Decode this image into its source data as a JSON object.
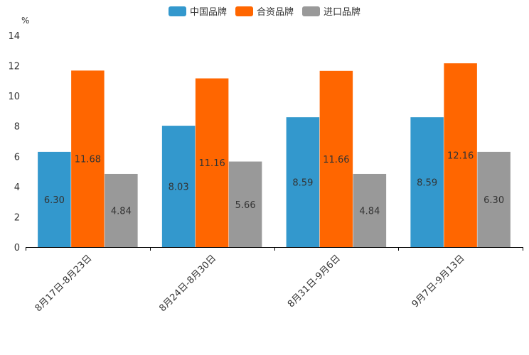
{
  "chart_data": {
    "type": "bar",
    "ylabel": "%",
    "ylim": [
      0,
      14
    ],
    "yticks": [
      "0",
      "2",
      "4",
      "6",
      "8",
      "10",
      "12",
      "14"
    ],
    "categories": [
      "8月17日-8月23日",
      "8月24日-8月30日",
      "8月31日-9月6日",
      "9月7日-9月13日"
    ],
    "series": [
      {
        "name": "中国品牌",
        "color": "#3398CD",
        "values": [
          6.3,
          8.03,
          8.59,
          8.59
        ],
        "labels": [
          "6.30",
          "8.03",
          "8.59",
          "8.59"
        ]
      },
      {
        "name": "合资品牌",
        "color": "#FF6600",
        "values": [
          11.68,
          11.16,
          11.66,
          12.16
        ],
        "labels": [
          "11.68",
          "11.16",
          "11.66",
          "12.16"
        ]
      },
      {
        "name": "进口品牌",
        "color": "#999999",
        "values": [
          4.84,
          5.66,
          4.84,
          6.3
        ],
        "labels": [
          "4.84",
          "5.66",
          "4.84",
          "6.30"
        ]
      }
    ],
    "legend_position": "top-center",
    "grid": false
  }
}
